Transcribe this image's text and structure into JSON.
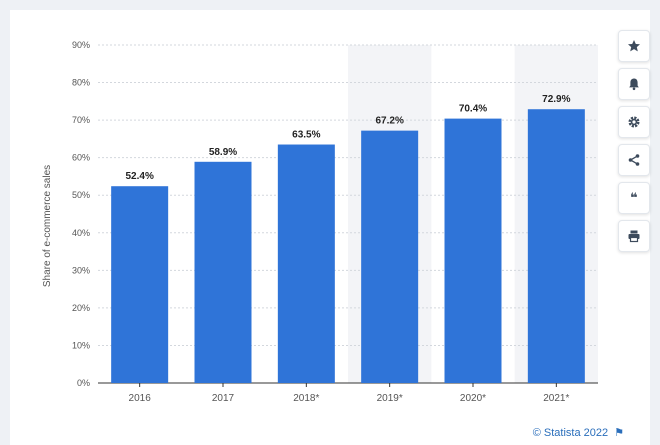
{
  "chart_data": {
    "type": "bar",
    "categories": [
      "2016",
      "2017",
      "2018*",
      "2019*",
      "2020*",
      "2021*"
    ],
    "values": [
      52.4,
      58.9,
      63.5,
      67.2,
      70.4,
      72.9
    ],
    "value_labels": [
      "52.4%",
      "58.9%",
      "63.5%",
      "67.2%",
      "70.4%",
      "72.9%"
    ],
    "ylabel": "Share of e-commerce sales",
    "xlabel": "",
    "ylim": [
      0,
      90
    ],
    "yticks": [
      0,
      10,
      20,
      30,
      40,
      50,
      60,
      70,
      80,
      90
    ],
    "ytick_labels": [
      "0%",
      "10%",
      "20%",
      "30%",
      "40%",
      "50%",
      "60%",
      "70%",
      "80%",
      "90%"
    ],
    "forecast_categories": [
      "2018*",
      "2019*",
      "2020*",
      "2021*"
    ],
    "grid": true,
    "colors": {
      "bar": "#2f74d8",
      "forecast_band": "#f3f4f7",
      "grid": "#d3d7dd"
    }
  },
  "sidebar": {
    "buttons": [
      {
        "icon": "star-icon"
      },
      {
        "icon": "bell-icon"
      },
      {
        "icon": "gear-icon"
      },
      {
        "icon": "share-icon"
      },
      {
        "icon": "quote-icon",
        "glyph": "❝"
      },
      {
        "icon": "print-icon"
      }
    ]
  },
  "footer": {
    "credit": "© Statista 2022",
    "flag_icon": "flag-icon"
  }
}
